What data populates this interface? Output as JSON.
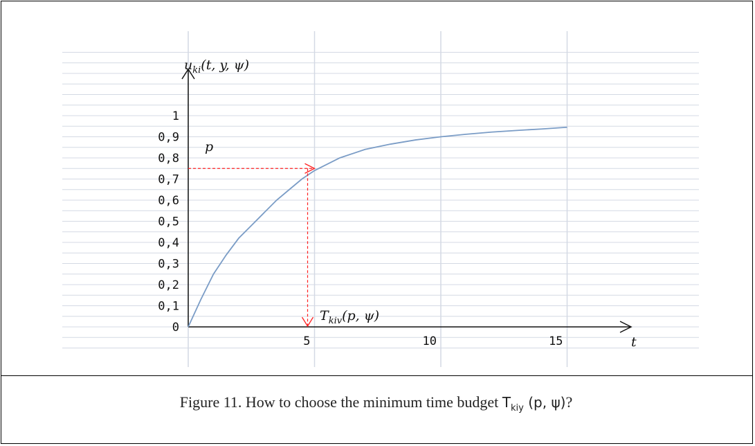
{
  "chart_data": {
    "type": "line",
    "x_ticks": [
      "5",
      "10",
      "15"
    ],
    "x_tick_values": [
      5,
      10,
      15
    ],
    "y_ticks": [
      "0",
      "0,1",
      "0,2",
      "0,3",
      "0,4",
      "0,5",
      "0,6",
      "0,7",
      "0,8",
      "0,9",
      "1"
    ],
    "y_tick_values": [
      0,
      0.1,
      0.2,
      0.3,
      0.4,
      0.5,
      0.6,
      0.7,
      0.8,
      0.9,
      1
    ],
    "xlabel": "t",
    "ylabel": "u_ki(t, y, ψ)",
    "ylabel_parts": {
      "base": "u",
      "sub": "ki",
      "args": "(t, y, ψ)"
    },
    "xlim": [
      0,
      18
    ],
    "ylim": [
      -0.1,
      1.3
    ],
    "grid": true,
    "series": [
      {
        "color": "#7a9cc6",
        "x": [
          0,
          0.5,
          1,
          1.5,
          2,
          2.5,
          3,
          3.5,
          4,
          4.5,
          5,
          6,
          7,
          8,
          9,
          10,
          11,
          12,
          13,
          14,
          15
        ],
        "y": [
          0,
          0.13,
          0.25,
          0.34,
          0.42,
          0.48,
          0.54,
          0.6,
          0.65,
          0.7,
          0.74,
          0.8,
          0.84,
          0.865,
          0.885,
          0.9,
          0.912,
          0.922,
          0.93,
          0.937,
          0.945
        ]
      }
    ],
    "annotations": {
      "p_label": "p",
      "p_value": 0.75,
      "t_value": 5,
      "t_label_parts": {
        "base": "T",
        "sub": "kiv",
        "args": "(p, ψ)"
      },
      "guide_color": "#ff2020"
    }
  },
  "caption": {
    "prefix": "Figure 11. How to choose the minimum time budget ",
    "sym": "T",
    "sub": "kiy",
    "args": " (p, ψ)",
    "suffix": "?"
  }
}
